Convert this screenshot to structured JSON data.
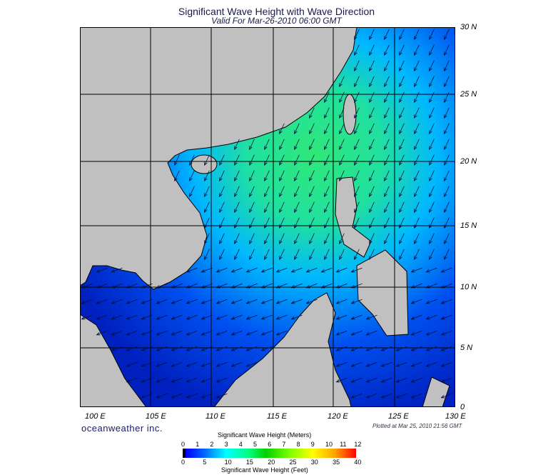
{
  "title": "Significant Wave Height with Wave Direction",
  "subtitle": "Valid For Mar-26-2010 06:00 GMT",
  "lat_labels": [
    "30 N",
    "25 N",
    "20 N",
    "15 N",
    "10 N",
    "5 N",
    "0"
  ],
  "lon_labels": [
    "100 E",
    "105 E",
    "110 E",
    "115 E",
    "120 E",
    "125 E",
    "130 E"
  ],
  "brand": "oceanweather inc.",
  "plotted": "Plotted at Mar 25, 2010 21:56 GMT",
  "colorbar": {
    "meters_title": "Significant Wave Height (Meters)",
    "meters_ticks": [
      "0",
      "1",
      "2",
      "3",
      "4",
      "5",
      "6",
      "7",
      "8",
      "9",
      "10",
      "11",
      "12"
    ],
    "feet_ticks": [
      "0",
      "5",
      "10",
      "15",
      "20",
      "25",
      "30",
      "35",
      "40"
    ],
    "feet_title": "Significant Wave Height (Feet)"
  },
  "colors": {
    "land": "#c0c0c0",
    "ocean_high": "#30e070",
    "ocean_mid": "#00c8ff",
    "ocean_low": "#0030e0"
  },
  "wave_direction": "toward southwest"
}
